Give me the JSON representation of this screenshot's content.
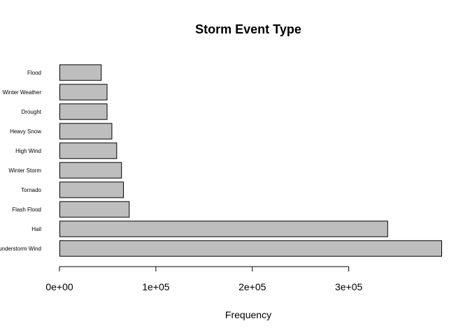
{
  "chart_data": {
    "type": "bar",
    "orientation": "horizontal",
    "title": "Storm Event Type",
    "xlabel": "Frequency",
    "ylabel": "",
    "categories": [
      "Thunderstorm Wind",
      "Hail",
      "Flash Flood",
      "Tornado",
      "Winter Storm",
      "High Wind",
      "Heavy Snow",
      "Drought",
      "Winter Weather",
      "Flood"
    ],
    "values": [
      396000,
      340000,
      72000,
      66000,
      64000,
      59000,
      54000,
      49000,
      49000,
      43000
    ],
    "xlim": [
      0,
      396000
    ],
    "xticks": [
      0,
      100000,
      200000,
      300000
    ],
    "xtick_labels": [
      "0e+00",
      "1e+05",
      "2e+05",
      "3e+05"
    ],
    "bar_color": "#bebebe",
    "grid": false,
    "legend": "none"
  }
}
